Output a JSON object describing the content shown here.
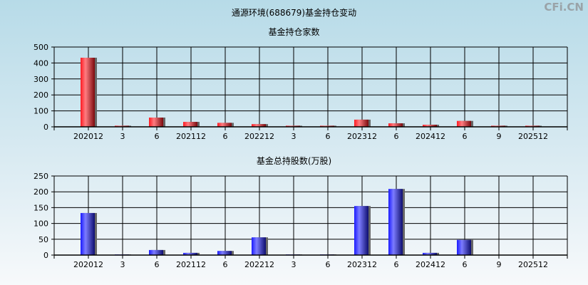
{
  "title": "通源环境(688679)基金持仓变动",
  "watermark": "CFi.CN",
  "chart_data": [
    {
      "type": "bar",
      "title": "基金持仓家数",
      "categories": [
        "202012",
        "3",
        "6",
        "202112",
        "6",
        "202212",
        "3",
        "6",
        "202312",
        "6",
        "202412",
        "6",
        "9",
        "202512"
      ],
      "values": [
        433,
        7,
        58,
        31,
        25,
        17,
        7,
        7,
        45,
        22,
        13,
        37,
        7,
        7
      ],
      "ylim": [
        0,
        500
      ],
      "yticks": [
        0,
        100,
        200,
        300,
        400,
        500
      ],
      "grid": true,
      "color": "#e8141c"
    },
    {
      "type": "bar",
      "title": "基金总持股数(万股)",
      "categories": [
        "202012",
        "3",
        "6",
        "202112",
        "6",
        "202212",
        "3",
        "6",
        "202312",
        "6",
        "202412",
        "6",
        "9",
        "202512"
      ],
      "values": [
        133,
        2,
        16,
        7,
        13,
        56,
        2,
        2,
        155,
        209,
        7,
        48,
        1,
        1
      ],
      "ylim": [
        0,
        250
      ],
      "yticks": [
        0,
        50,
        100,
        150,
        200,
        250
      ],
      "grid": true,
      "color": "#1a1ae8"
    }
  ]
}
